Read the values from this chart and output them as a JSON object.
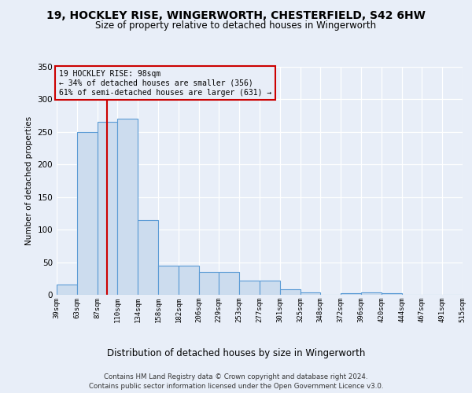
{
  "title_line1": "19, HOCKLEY RISE, WINGERWORTH, CHESTERFIELD, S42 6HW",
  "title_line2": "Size of property relative to detached houses in Wingerworth",
  "xlabel": "Distribution of detached houses by size in Wingerworth",
  "ylabel": "Number of detached properties",
  "footnote1": "Contains HM Land Registry data © Crown copyright and database right 2024.",
  "footnote2": "Contains public sector information licensed under the Open Government Licence v3.0.",
  "annotation_line1": "19 HOCKLEY RISE: 98sqm",
  "annotation_line2": "← 34% of detached houses are smaller (356)",
  "annotation_line3": "61% of semi-detached houses are larger (631) →",
  "bar_edges": [
    39,
    63,
    87,
    110,
    134,
    158,
    182,
    206,
    229,
    253,
    277,
    301,
    325,
    348,
    372,
    396,
    420,
    444,
    467,
    491,
    515
  ],
  "bar_heights": [
    16,
    250,
    265,
    270,
    115,
    45,
    45,
    35,
    35,
    22,
    22,
    9,
    4,
    0,
    3,
    4,
    3,
    0,
    0,
    0,
    3
  ],
  "bar_color": "#ccdcee",
  "bar_edge_color": "#5b9bd5",
  "vline_color": "#cc0000",
  "vline_x": 98,
  "annotation_box_edgecolor": "#cc0000",
  "background_color": "#e8eef8",
  "plot_bg_color": "#e8eef8",
  "grid_color": "#ffffff",
  "ylim": [
    0,
    350
  ],
  "yticks": [
    0,
    50,
    100,
    150,
    200,
    250,
    300,
    350
  ]
}
